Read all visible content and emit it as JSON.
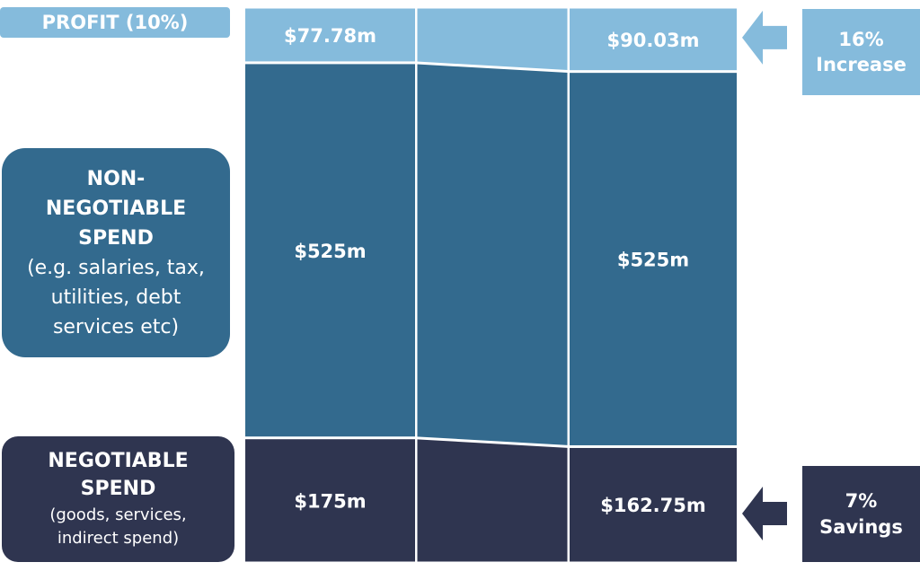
{
  "labels": {
    "profit": "PROFIT (10%)",
    "non_negotiable_title": [
      "NON-",
      "NEGOTIABLE",
      "SPEND"
    ],
    "non_negotiable_desc": [
      "(e.g. salaries, tax,",
      "utilities, debt",
      "services etc)"
    ],
    "negotiable_title": [
      "NEGOTIABLE",
      "SPEND"
    ],
    "negotiable_desc": [
      "(goods, services,",
      "indirect spend)"
    ]
  },
  "callouts": {
    "increase": [
      "16%",
      "Increase"
    ],
    "savings": [
      "7%",
      "Savings"
    ]
  },
  "colors": {
    "profit": "#85bbdc",
    "non_negotiable": "#336a8e",
    "negotiable": "#2f3550",
    "divider": "#ffffff"
  },
  "chart_data": {
    "type": "bar",
    "stacked": true,
    "categories": [
      "",
      ""
    ],
    "series": [
      {
        "key": "negotiable",
        "values": [
          175,
          162.75
        ],
        "labels": [
          "$175m",
          "$162.75m"
        ]
      },
      {
        "key": "non_negotiable",
        "values": [
          525,
          525
        ],
        "labels": [
          "$525m",
          "$525m"
        ]
      },
      {
        "key": "profit",
        "values": [
          77.78,
          90.03
        ],
        "labels": [
          "$77.78m",
          "$90.03m"
        ]
      }
    ],
    "title": "",
    "xlabel": "",
    "ylabel": ""
  }
}
